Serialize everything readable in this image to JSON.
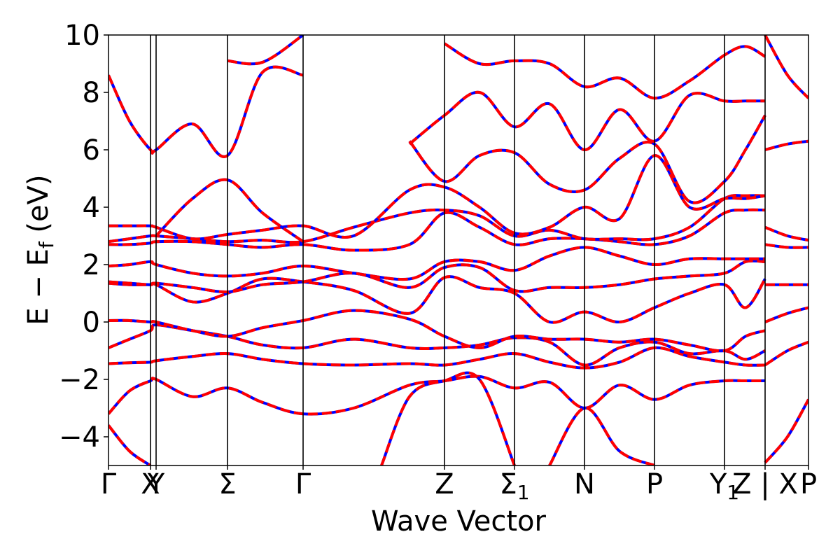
{
  "chart_data": {
    "type": "line",
    "title": "",
    "xlabel": "Wave Vector",
    "ylabel_main": "E − E",
    "ylabel_sub": "f",
    "ylabel_unit": " (eV)",
    "ylim": [
      -5,
      10
    ],
    "yticks": [
      -4,
      -2,
      0,
      2,
      4,
      6,
      8,
      10
    ],
    "ytick_labels": [
      "−4",
      "−2",
      "0",
      "2",
      "4",
      "6",
      "8",
      "10"
    ],
    "xlim": [
      0,
      10
    ],
    "kpoints": [
      {
        "label": "Γ",
        "sub": "",
        "x": 0.0
      },
      {
        "label": "X",
        "sub": "",
        "x": 0.6
      },
      {
        "label": "Y",
        "sub": "",
        "x": 0.68
      },
      {
        "label": "Σ",
        "sub": "",
        "x": 1.7
      },
      {
        "label": "Γ",
        "sub": "",
        "x": 2.78
      },
      {
        "label": "Z",
        "sub": "",
        "x": 4.8
      },
      {
        "label": "Σ",
        "sub": "1",
        "x": 5.8
      },
      {
        "label": "N",
        "sub": "",
        "x": 6.8
      },
      {
        "label": "P",
        "sub": "",
        "x": 7.8
      },
      {
        "label": "Y",
        "sub": "1",
        "x": 8.8
      },
      {
        "label": "Z | X",
        "sub": "",
        "x": 9.38
      },
      {
        "label": "P",
        "sub": "",
        "x": 10.0
      }
    ],
    "styles": {
      "series_a_color": "#0000ff",
      "series_b_color": "#ff0000",
      "series_b_dash": "dashed"
    },
    "bands": [
      {
        "x": [
          0,
          0.3,
          0.6,
          0.68,
          1.2,
          1.7,
          2.2,
          2.78,
          3.5,
          4.3,
          4.8,
          5.3,
          5.8,
          6.3,
          6.8,
          7.3,
          7.8,
          8.3,
          8.8,
          9.1,
          9.38
        ],
        "y": [
          -3.2,
          -2.4,
          -2.05,
          -2.0,
          -2.6,
          -2.3,
          -2.8,
          -3.2,
          -3.0,
          -2.2,
          -2.05,
          -1.9,
          -2.3,
          -2.1,
          -3.0,
          -2.2,
          -2.7,
          -2.2,
          -2.05,
          -2.05,
          -2.05
        ]
      },
      {
        "x": [
          0,
          0.3,
          0.6,
          0.68,
          1.2,
          1.7,
          2.2,
          2.78,
          3.5,
          4.3,
          4.8,
          5.3,
          5.8,
          6.3,
          6.8,
          7.3,
          7.8,
          8.3,
          8.8,
          9.1,
          9.38
        ],
        "y": [
          -1.45,
          -1.42,
          -1.4,
          -1.35,
          -1.2,
          -1.1,
          -1.3,
          -1.45,
          -1.5,
          -1.45,
          -1.5,
          -1.3,
          -1.1,
          -1.4,
          -1.6,
          -1.4,
          -0.9,
          -1.2,
          -1.4,
          -1.5,
          -1.5
        ]
      },
      {
        "x": [
          0,
          0.3,
          0.6,
          0.68,
          1.2,
          1.7,
          2.2,
          2.78,
          3.5,
          4.3,
          4.8,
          5.3,
          5.8,
          6.3,
          6.8,
          7.3,
          7.8,
          8.3,
          8.8,
          9.1,
          9.38
        ],
        "y": [
          -0.9,
          -0.6,
          -0.3,
          -0.1,
          -0.3,
          -0.5,
          -0.8,
          -0.9,
          -0.6,
          -0.9,
          -0.9,
          -0.8,
          -0.55,
          -0.7,
          -1.5,
          -0.9,
          -0.7,
          -1.1,
          -1.0,
          -1.3,
          -1.0
        ]
      },
      {
        "x": [
          0,
          0.3,
          0.6,
          0.68,
          1.2,
          1.7,
          2.2,
          2.78,
          3.5,
          4.3,
          4.8,
          5.3,
          5.8,
          6.3,
          6.8,
          7.3,
          7.8,
          8.3,
          8.8,
          9.1,
          9.38
        ],
        "y": [
          0.05,
          0.05,
          0.0,
          0.0,
          -0.3,
          -0.5,
          -0.2,
          0.05,
          0.4,
          0.1,
          -0.5,
          -0.9,
          -0.5,
          -0.6,
          -0.6,
          -0.7,
          -0.6,
          -0.8,
          -1.0,
          -0.5,
          -0.3
        ]
      },
      {
        "x": [
          0,
          0.3,
          0.6,
          0.68,
          1.2,
          1.7,
          2.2,
          2.78,
          3.5,
          4.3,
          4.8,
          5.3,
          5.8,
          6.3,
          6.8,
          7.3,
          7.8,
          8.3,
          8.8,
          9.1,
          9.38
        ],
        "y": [
          1.35,
          1.3,
          1.3,
          1.3,
          0.7,
          1.0,
          1.5,
          1.4,
          1.1,
          0.3,
          1.55,
          1.2,
          1.0,
          0.0,
          0.35,
          0.0,
          0.5,
          1.0,
          1.3,
          0.5,
          1.5
        ]
      },
      {
        "x": [
          0,
          0.3,
          0.6,
          0.68,
          1.2,
          1.7,
          2.2,
          2.78,
          3.5,
          4.3,
          4.8,
          5.3,
          5.8,
          6.3,
          6.8,
          7.3,
          7.8,
          8.3,
          8.8,
          9.1,
          9.38
        ],
        "y": [
          1.4,
          1.35,
          1.3,
          1.35,
          1.2,
          1.05,
          1.3,
          1.4,
          1.7,
          1.2,
          1.9,
          1.9,
          1.1,
          1.2,
          1.2,
          1.3,
          1.5,
          1.6,
          1.7,
          2.1,
          2.1
        ]
      },
      {
        "x": [
          0,
          0.3,
          0.6,
          0.68,
          1.2,
          1.7,
          2.2,
          2.78,
          3.5,
          4.3,
          4.8,
          5.3,
          5.8,
          6.3,
          6.8,
          7.3,
          7.8,
          8.3,
          8.8,
          9.1,
          9.38
        ],
        "y": [
          1.95,
          2.0,
          2.1,
          2.0,
          1.7,
          1.6,
          1.7,
          1.95,
          1.7,
          1.5,
          2.1,
          2.1,
          1.8,
          2.3,
          2.6,
          2.3,
          2.0,
          2.2,
          2.2,
          2.2,
          2.2
        ]
      },
      {
        "x": [
          0,
          0.3,
          0.6,
          0.68,
          1.2,
          1.7,
          2.2,
          2.78,
          3.5,
          4.3,
          4.8,
          5.3,
          5.8,
          6.3,
          6.8,
          7.3,
          7.8,
          8.3,
          8.8,
          9.1,
          9.38
        ],
        "y": [
          2.7,
          2.7,
          2.75,
          2.8,
          2.8,
          2.7,
          2.6,
          2.7,
          2.5,
          2.7,
          3.8,
          3.3,
          2.7,
          2.9,
          2.9,
          2.8,
          2.7,
          3.0,
          3.8,
          3.9,
          3.9
        ]
      },
      {
        "x": [
          0,
          0.3,
          0.6,
          0.68,
          1.2,
          1.7,
          2.2,
          2.78,
          3.5,
          4.3,
          4.8,
          5.3,
          5.8,
          6.3,
          6.8,
          7.3,
          7.8,
          8.3,
          8.8,
          9.1,
          9.38
        ],
        "y": [
          2.8,
          2.9,
          3.0,
          3.0,
          2.9,
          2.8,
          2.85,
          2.8,
          3.3,
          3.8,
          3.9,
          3.7,
          3.0,
          3.2,
          2.9,
          2.9,
          2.9,
          3.3,
          4.3,
          4.4,
          4.4
        ]
      },
      {
        "x": [
          0,
          0.3,
          0.6,
          0.68,
          1.2,
          1.7,
          2.2,
          2.78,
          3.5,
          4.3,
          4.8,
          5.3,
          5.8,
          6.3,
          6.8,
          7.3,
          7.8,
          8.3,
          8.8,
          9.1,
          9.38
        ],
        "y": [
          3.35,
          3.35,
          3.35,
          3.3,
          2.9,
          3.05,
          3.2,
          3.35,
          3.0,
          4.6,
          4.7,
          4.0,
          3.1,
          3.3,
          4.0,
          3.6,
          5.8,
          4.0,
          4.3,
          4.3,
          4.4
        ]
      },
      {
        "x": [
          0,
          0.3,
          0.6,
          0.68,
          1.2,
          1.7,
          2.2,
          2.78
        ],
        "y": [
          8.6,
          7.0,
          6.0,
          6.0,
          6.9,
          5.8,
          8.7,
          8.6
        ]
      },
      {
        "x": [
          0.68,
          1.2,
          1.7,
          2.2,
          2.78
        ],
        "y": [
          3.0,
          4.3,
          4.95,
          3.8,
          2.8
        ]
      },
      {
        "x": [
          4.3,
          4.8,
          5.3,
          5.8,
          6.3,
          6.8,
          7.3,
          7.8,
          8.3,
          8.8,
          9.1,
          9.38
        ],
        "y": [
          6.3,
          4.9,
          5.8,
          5.9,
          4.8,
          4.6,
          5.7,
          6.2,
          4.2,
          4.9,
          6.0,
          7.2
        ]
      },
      {
        "x": [
          4.3,
          4.8,
          5.3,
          5.8,
          6.3,
          6.8,
          7.3,
          7.8,
          8.3,
          8.8,
          9.1,
          9.38
        ],
        "y": [
          6.2,
          7.2,
          8.0,
          6.8,
          7.6,
          6.0,
          7.4,
          6.3,
          7.9,
          7.7,
          7.7,
          7.7
        ]
      },
      {
        "x": [
          1.7,
          2.2,
          2.78
        ],
        "y": [
          9.1,
          9.05,
          10.0
        ]
      },
      {
        "x": [
          4.8,
          5.3,
          5.8,
          6.3,
          6.8,
          7.3,
          7.8,
          8.3,
          8.8,
          9.1,
          9.38
        ],
        "y": [
          9.7,
          9.0,
          9.1,
          9.0,
          8.2,
          8.5,
          7.8,
          8.4,
          9.3,
          9.6,
          9.25
        ]
      },
      {
        "x": [
          9.38,
          9.7,
          10.0
        ],
        "y": [
          6.0,
          6.2,
          6.3
        ]
      },
      {
        "x": [
          9.38,
          9.7,
          10.0
        ],
        "y": [
          3.3,
          3.0,
          2.85
        ]
      },
      {
        "x": [
          9.38,
          9.7,
          10.0
        ],
        "y": [
          2.7,
          2.6,
          2.6
        ]
      },
      {
        "x": [
          9.38,
          9.7,
          10.0
        ],
        "y": [
          1.3,
          1.3,
          1.3
        ]
      },
      {
        "x": [
          9.38,
          9.7,
          10.0
        ],
        "y": [
          0.0,
          0.3,
          0.5
        ]
      },
      {
        "x": [
          9.38,
          9.7,
          10.0
        ],
        "y": [
          -1.5,
          -1.0,
          -0.7
        ]
      },
      {
        "x": [
          9.38,
          9.7,
          10.0
        ],
        "y": [
          -4.9,
          -4.0,
          -2.7
        ]
      },
      {
        "x": [
          9.38,
          9.7,
          10.0
        ],
        "y": [
          10.0,
          8.6,
          7.8
        ]
      },
      {
        "x": [
          0,
          0.3,
          0.6
        ],
        "y": [
          -3.6,
          -4.5,
          -5.0
        ]
      },
      {
        "x": [
          3.9,
          4.3,
          4.8,
          5.3,
          5.8
        ],
        "y": [
          -5.0,
          -2.6,
          -2.05,
          -2.0,
          -5.0
        ]
      },
      {
        "x": [
          6.3,
          6.8,
          7.3,
          7.8
        ],
        "y": [
          -5.0,
          -3.0,
          -4.5,
          -5.0
        ]
      }
    ]
  }
}
